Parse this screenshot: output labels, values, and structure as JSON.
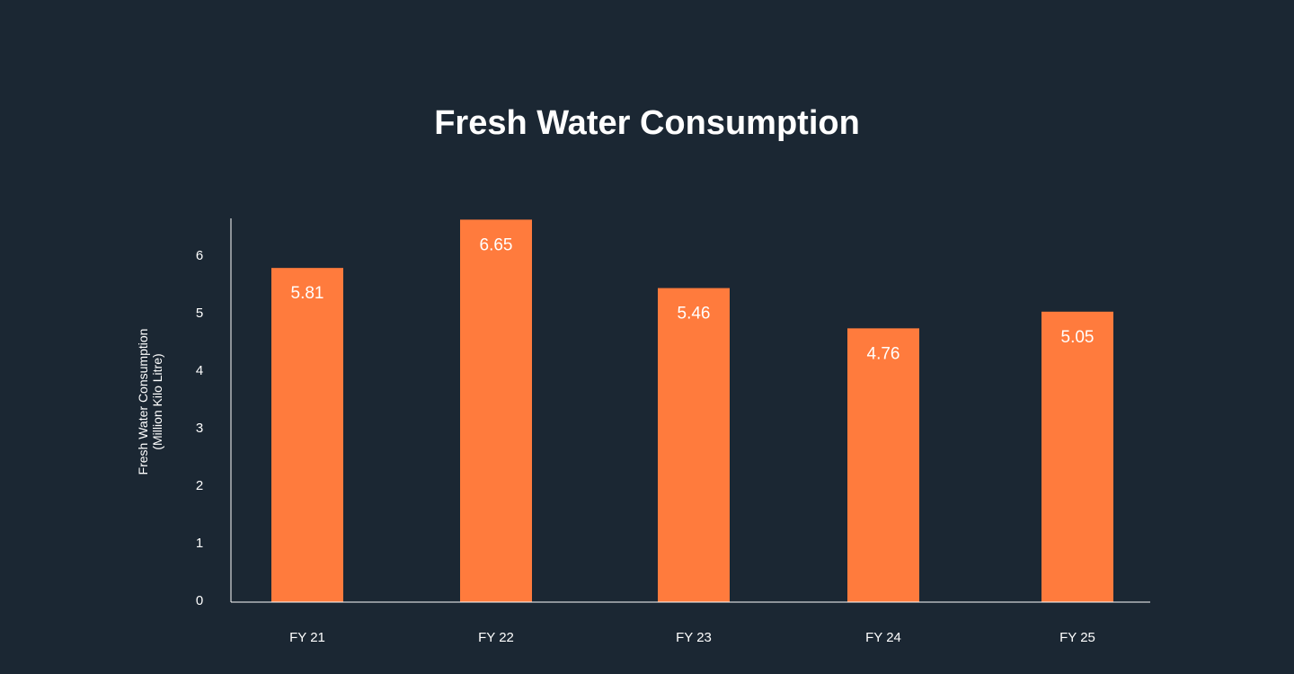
{
  "chart_data": {
    "type": "bar",
    "title": "Fresh Water Consumption",
    "xlabel": "",
    "ylabel": [
      "Fresh Water Consumption",
      "(Million Kilo Litre)"
    ],
    "categories": [
      "FY 21",
      "FY 22",
      "FY 23",
      "FY 24",
      "FY 25"
    ],
    "values": [
      5.81,
      6.65,
      5.46,
      4.76,
      5.05
    ],
    "value_labels": [
      "5.81",
      "6.65",
      "5.46",
      "4.76",
      "5.05"
    ],
    "yticks": [
      0,
      1,
      2,
      3,
      4,
      5,
      6
    ],
    "ylim": [
      0,
      6.65
    ],
    "grid": false,
    "legend": "none"
  },
  "colors": {
    "background": "#1b2733",
    "bar": "#ff7b3d",
    "axis": "#ffffff",
    "text": "#ffffff"
  }
}
